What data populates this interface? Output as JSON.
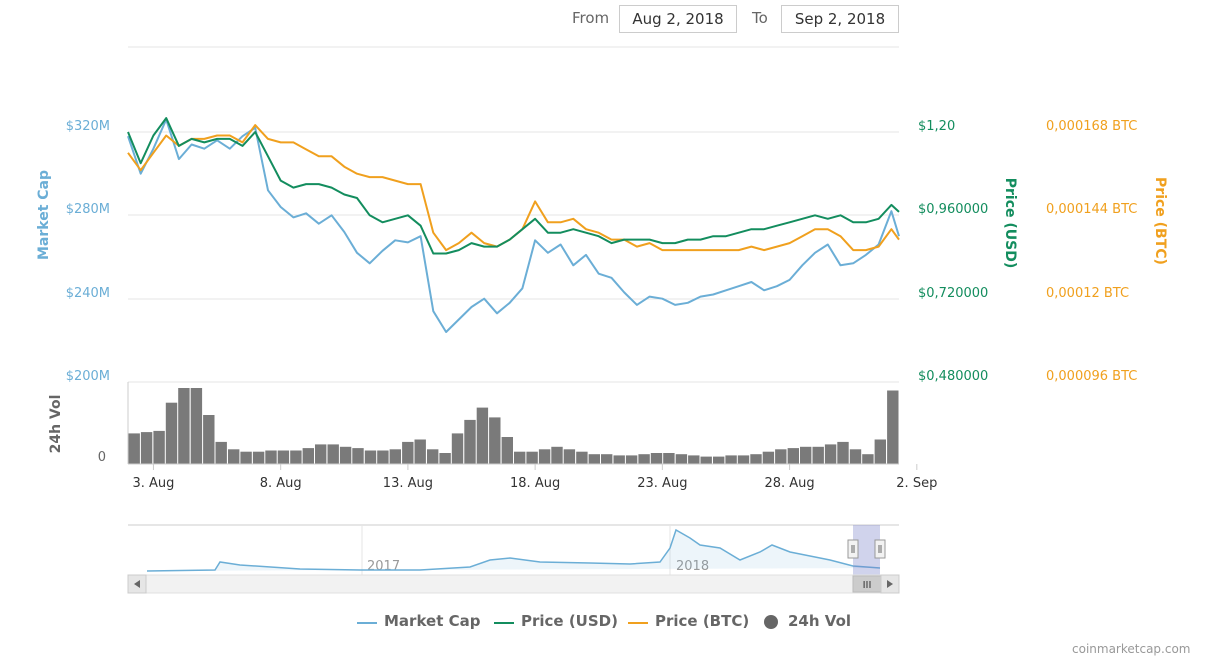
{
  "range_selector": {
    "from_label": "From",
    "from_value": "Aug 2, 2018",
    "to_label": "To",
    "to_value": "Sep 2, 2018"
  },
  "credit": "coinmarketcap.com",
  "legend": [
    {
      "label": "Market Cap",
      "color": "#6baed6",
      "symbol": "line"
    },
    {
      "label": "Price (USD)",
      "color": "#138d5e",
      "symbol": "line"
    },
    {
      "label": "Price (BTC)",
      "color": "#f0a01e",
      "symbol": "line"
    },
    {
      "label": "24h Vol",
      "color": "#666666",
      "symbol": "circle"
    }
  ],
  "navigator": {
    "labels": [
      "2017",
      "2018"
    ],
    "scroll_label": "III"
  },
  "chart_data": {
    "type": "line",
    "x_ticks": [
      "3. Aug",
      "8. Aug",
      "13. Aug",
      "18. Aug",
      "23. Aug",
      "28. Aug",
      "2. Sep"
    ],
    "x_range": [
      "Aug 2, 2018",
      "Sep 2, 2018"
    ],
    "axes": {
      "market_cap": {
        "title": "Market Cap",
        "color": "#6baed6",
        "ticks": [
          "$200M",
          "$240M",
          "$280M",
          "$320M"
        ],
        "range": [
          200,
          320
        ],
        "unit": "$M"
      },
      "price_usd": {
        "title": "Price (USD)",
        "color": "#138d5e",
        "ticks": [
          "$0,480000",
          "$0,720000",
          "$0,960000",
          "$1,20"
        ],
        "range": [
          0.48,
          1.2
        ]
      },
      "price_btc": {
        "title": "Price (BTC)",
        "color": "#f0a01e",
        "ticks": [
          "0,000096 BTC",
          "0,00012 BTC",
          "0,000144 BTC",
          "0,000168 BTC"
        ],
        "range": [
          9.6e-05,
          0.000168
        ]
      },
      "volume": {
        "title": "24h Vol",
        "color": "#666666",
        "ticks": [
          "0"
        ]
      }
    },
    "x": [
      2.0,
      2.5,
      3.0,
      3.5,
      4.0,
      4.5,
      5.0,
      5.5,
      6.0,
      6.5,
      7.0,
      7.5,
      8.0,
      8.5,
      9.0,
      9.5,
      10.0,
      10.5,
      11.0,
      11.5,
      12.0,
      12.5,
      13.0,
      13.5,
      14.0,
      14.5,
      15.0,
      15.5,
      16.0,
      16.5,
      17.0,
      17.5,
      18.0,
      18.5,
      19.0,
      19.5,
      20.0,
      20.5,
      21.0,
      21.5,
      22.0,
      22.5,
      23.0,
      23.5,
      24.0,
      24.5,
      25.0,
      25.5,
      26.0,
      26.5,
      27.0,
      27.5,
      28.0,
      28.5,
      29.0,
      29.5,
      30.0,
      30.5,
      31.0,
      31.5,
      32.0,
      32.3
    ],
    "series": [
      {
        "name": "Market Cap",
        "axis": "market_cap",
        "color": "#6baed6",
        "values": [
          318,
          300,
          312,
          326,
          307,
          314,
          312,
          316,
          312,
          318,
          322,
          292,
          284,
          279,
          281,
          276,
          280,
          272,
          262,
          257,
          263,
          268,
          267,
          270,
          234,
          224,
          230,
          236,
          240,
          233,
          238,
          245,
          268,
          262,
          266,
          256,
          261,
          252,
          250,
          243,
          237,
          241,
          240,
          237,
          238,
          241,
          242,
          244,
          246,
          248,
          244,
          246,
          249,
          256,
          262,
          266,
          256,
          257,
          261,
          266,
          282,
          270
        ]
      },
      {
        "name": "Price (USD)",
        "axis": "price_usd",
        "color": "#138d5e",
        "values": [
          1.2,
          1.11,
          1.19,
          1.24,
          1.16,
          1.18,
          1.17,
          1.18,
          1.18,
          1.16,
          1.2,
          1.13,
          1.06,
          1.04,
          1.05,
          1.05,
          1.04,
          1.02,
          1.01,
          0.96,
          0.94,
          0.95,
          0.96,
          0.93,
          0.85,
          0.85,
          0.86,
          0.88,
          0.87,
          0.87,
          0.89,
          0.92,
          0.95,
          0.91,
          0.91,
          0.92,
          0.91,
          0.9,
          0.88,
          0.89,
          0.89,
          0.89,
          0.88,
          0.88,
          0.89,
          0.89,
          0.9,
          0.9,
          0.91,
          0.92,
          0.92,
          0.93,
          0.94,
          0.95,
          0.96,
          0.95,
          0.96,
          0.94,
          0.94,
          0.95,
          0.99,
          0.97
        ]
      },
      {
        "name": "Price (BTC)",
        "axis": "price_btc",
        "color": "#f0a01e",
        "values": [
          0.000162,
          0.000157,
          0.000162,
          0.000167,
          0.000164,
          0.000166,
          0.000166,
          0.000167,
          0.000167,
          0.000165,
          0.00017,
          0.000166,
          0.000165,
          0.000165,
          0.000163,
          0.000161,
          0.000161,
          0.000158,
          0.000156,
          0.000155,
          0.000155,
          0.000154,
          0.000153,
          0.000153,
          0.000139,
          0.000134,
          0.000136,
          0.000139,
          0.000136,
          0.000135,
          0.000137,
          0.00014,
          0.000148,
          0.000142,
          0.000142,
          0.000143,
          0.00014,
          0.000139,
          0.000137,
          0.000137,
          0.000135,
          0.000136,
          0.000134,
          0.000134,
          0.000134,
          0.000134,
          0.000134,
          0.000134,
          0.000134,
          0.000135,
          0.000134,
          0.000135,
          0.000136,
          0.000138,
          0.00014,
          0.00014,
          0.000138,
          0.000134,
          0.000134,
          0.000135,
          0.00014,
          0.000137
        ]
      },
      {
        "name": "24h Vol",
        "axis": "volume",
        "color": "#666666",
        "type": "column",
        "values": [
          25,
          26,
          27,
          50,
          62,
          62,
          40,
          18,
          12,
          10,
          10,
          11,
          11,
          11,
          13,
          16,
          16,
          14,
          13,
          11,
          11,
          12,
          18,
          20,
          12,
          9,
          25,
          36,
          46,
          38,
          22,
          10,
          10,
          12,
          14,
          12,
          10,
          8,
          8,
          7,
          7,
          8,
          9,
          9,
          8,
          7,
          6,
          6,
          7,
          7,
          8,
          10,
          12,
          13,
          14,
          14,
          16,
          18,
          12,
          8,
          20,
          60
        ]
      }
    ]
  }
}
